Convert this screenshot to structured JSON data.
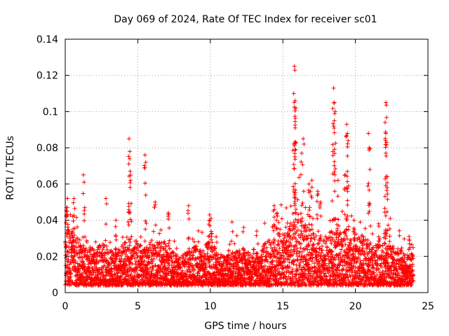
{
  "chart_data": {
    "type": "scatter",
    "title": "Day 069 of 2024, Rate Of TEC Index for receiver sc01",
    "xlabel": "GPS time / hours",
    "ylabel": "ROTI / TECUs",
    "xlim": [
      0,
      25
    ],
    "ylim": [
      0,
      0.14
    ],
    "xticks": [
      0,
      5,
      10,
      15,
      20,
      25
    ],
    "xtick_labels": [
      "0",
      "5",
      "10",
      "15",
      "20",
      "25"
    ],
    "yticks": [
      0,
      0.02,
      0.04,
      0.06,
      0.08,
      0.1,
      0.12,
      0.14
    ],
    "ytick_labels": [
      "0",
      "0.02",
      "0.04",
      "0.06",
      "0.08",
      "0.1",
      "0.12",
      "0.14"
    ],
    "grid": true,
    "marker": "+",
    "color": "#ff0000",
    "data_x_range": [
      0,
      24
    ],
    "envelope": [
      [
        0.0,
        0.03
      ],
      [
        0.5,
        0.032
      ],
      [
        1.0,
        0.026
      ],
      [
        1.5,
        0.022
      ],
      [
        2.0,
        0.02
      ],
      [
        2.5,
        0.024
      ],
      [
        3.0,
        0.02
      ],
      [
        3.5,
        0.018
      ],
      [
        4.0,
        0.024
      ],
      [
        4.5,
        0.03
      ],
      [
        5.0,
        0.024
      ],
      [
        5.5,
        0.02
      ],
      [
        6.0,
        0.022
      ],
      [
        6.5,
        0.026
      ],
      [
        7.0,
        0.022
      ],
      [
        7.5,
        0.018
      ],
      [
        8.0,
        0.016
      ],
      [
        8.5,
        0.02
      ],
      [
        9.0,
        0.022
      ],
      [
        9.5,
        0.02
      ],
      [
        10.0,
        0.026
      ],
      [
        10.5,
        0.018
      ],
      [
        11.0,
        0.016
      ],
      [
        11.5,
        0.018
      ],
      [
        12.0,
        0.02
      ],
      [
        12.5,
        0.018
      ],
      [
        13.0,
        0.016
      ],
      [
        13.5,
        0.02
      ],
      [
        14.0,
        0.026
      ],
      [
        14.5,
        0.034
      ],
      [
        15.0,
        0.03
      ],
      [
        15.5,
        0.036
      ],
      [
        16.0,
        0.04
      ],
      [
        16.5,
        0.034
      ],
      [
        17.0,
        0.03
      ],
      [
        17.5,
        0.026
      ],
      [
        18.0,
        0.028
      ],
      [
        18.5,
        0.032
      ],
      [
        19.0,
        0.03
      ],
      [
        19.5,
        0.028
      ],
      [
        20.0,
        0.026
      ],
      [
        20.5,
        0.028
      ],
      [
        21.0,
        0.024
      ],
      [
        21.5,
        0.022
      ],
      [
        22.0,
        0.024
      ],
      [
        22.5,
        0.022
      ],
      [
        23.0,
        0.02
      ],
      [
        23.5,
        0.018
      ],
      [
        24.0,
        0.018
      ]
    ],
    "spikes": [
      [
        0.1,
        0.047
      ],
      [
        0.15,
        0.052
      ],
      [
        0.6,
        0.052
      ],
      [
        1.25,
        0.065
      ],
      [
        1.3,
        0.061
      ],
      [
        2.8,
        0.052
      ],
      [
        4.4,
        0.085
      ],
      [
        4.45,
        0.078
      ],
      [
        4.5,
        0.062
      ],
      [
        5.5,
        0.076
      ],
      [
        5.55,
        0.072
      ],
      [
        6.2,
        0.05
      ],
      [
        9.95,
        0.043
      ],
      [
        11.5,
        0.039
      ],
      [
        14.4,
        0.048
      ],
      [
        15.8,
        0.125
      ],
      [
        15.75,
        0.11
      ],
      [
        15.85,
        0.106
      ],
      [
        15.9,
        0.102
      ],
      [
        15.85,
        0.091
      ],
      [
        15.8,
        0.082
      ],
      [
        16.4,
        0.085
      ],
      [
        16.3,
        0.077
      ],
      [
        18.5,
        0.113
      ],
      [
        18.55,
        0.105
      ],
      [
        18.6,
        0.1
      ],
      [
        18.55,
        0.095
      ],
      [
        18.5,
        0.092
      ],
      [
        18.45,
        0.078
      ],
      [
        19.4,
        0.093
      ],
      [
        19.45,
        0.088
      ],
      [
        19.5,
        0.084
      ],
      [
        19.3,
        0.065
      ],
      [
        19.4,
        0.058
      ],
      [
        20.9,
        0.088
      ],
      [
        20.95,
        0.08
      ],
      [
        21.0,
        0.068
      ],
      [
        22.1,
        0.105
      ],
      [
        22.05,
        0.094
      ],
      [
        22.1,
        0.088
      ],
      [
        22.15,
        0.083
      ],
      [
        22.1,
        0.077
      ],
      [
        22.2,
        0.064
      ],
      [
        22.4,
        0.041
      ],
      [
        8.5,
        0.048
      ],
      [
        7.1,
        0.044
      ],
      [
        3.5,
        0.04
      ],
      [
        12.3,
        0.036
      ],
      [
        13.2,
        0.034
      ],
      [
        17.4,
        0.056
      ],
      [
        17.0,
        0.062
      ],
      [
        16.8,
        0.06
      ],
      [
        16.9,
        0.056
      ],
      [
        17.6,
        0.05
      ],
      [
        18.8,
        0.062
      ],
      [
        19.9,
        0.04
      ],
      [
        21.6,
        0.038
      ],
      [
        23.7,
        0.031
      ],
      [
        10.05,
        0.041
      ],
      [
        14.6,
        0.044
      ]
    ]
  }
}
